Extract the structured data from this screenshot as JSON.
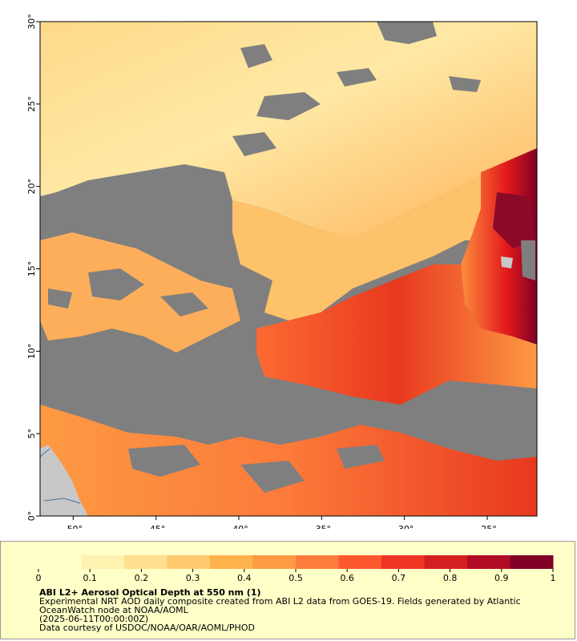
{
  "map": {
    "lat_labels": [
      "0°",
      "5°",
      "10°",
      "15°",
      "20°",
      "25°",
      "30°"
    ],
    "lon_labels": [
      "-50°",
      "-45°",
      "-40°",
      "-35°",
      "-30°",
      "-25°"
    ],
    "lat_range": [
      0,
      30
    ],
    "lon_range": [
      -52,
      -22
    ],
    "colors": {
      "no_data": "#7f7f7f",
      "land": "#c8c8c8",
      "coast": "#4a6fa0"
    }
  },
  "colorbar": {
    "ticks": [
      "0",
      "0.1",
      "0.2",
      "0.3",
      "0.4",
      "0.5",
      "0.6",
      "0.7",
      "0.8",
      "0.9",
      "1"
    ],
    "range": [
      0,
      1
    ],
    "colors": [
      "#ffffcc",
      "#fff2b0",
      "#ffe08f",
      "#fec96e",
      "#feb24c",
      "#fd9a43",
      "#fd7c3b",
      "#fc5a2e",
      "#ef3423",
      "#d31f1f",
      "#b10c26",
      "#800026"
    ]
  },
  "caption": {
    "title": "ABI L2+ Aerosol Optical Depth at 550 nm (1)",
    "line1": "Experimental NRT AOD daily composite created from ABI L2 data from GOES-19. Fields generated by Atlantic",
    "line2": "OceanWatch node at NOAA/AOML",
    "line3": "(2025-06-11T00:00:00Z)",
    "line4": "Data courtesy of USDOC/NOAA/OAR/AOML/PHOD"
  }
}
